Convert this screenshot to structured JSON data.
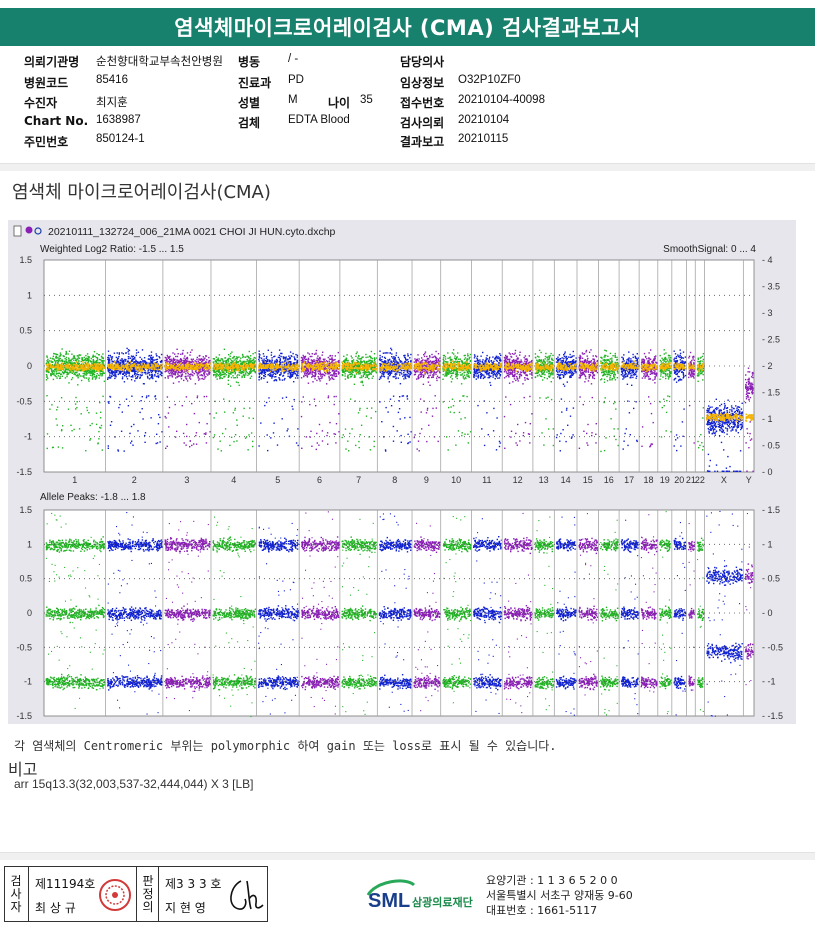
{
  "title": "염색체마이크로어레이검사 (CMA) 검사결과보고서",
  "info": {
    "rows": [
      [
        [
          "의뢰기관명",
          "순천향대학교부속천안병원"
        ],
        [
          "병동",
          "/ -"
        ],
        [
          "담당의사",
          ""
        ]
      ],
      [
        [
          "병원코드",
          "85416"
        ],
        [
          "진료과",
          "PD"
        ],
        [
          "임상정보",
          "O32P10ZF0"
        ]
      ],
      [
        [
          "수진자",
          "최지훈"
        ],
        [
          "성별",
          "M"
        ],
        [
          "접수번호",
          "20210104-40098"
        ]
      ],
      [
        [
          "Chart No.",
          "1638987"
        ],
        [
          "검체",
          "EDTA Blood"
        ],
        [
          "검사의뢰",
          "20210104"
        ]
      ],
      [
        [
          "주민번호",
          "850124-1"
        ],
        [
          "",
          ""
        ],
        [
          "결과보고",
          "20210115"
        ]
      ]
    ],
    "age_label": "나이",
    "age_value": "35"
  },
  "section_title": "염색체 마이크로어레이검사(CMA)",
  "plot": {
    "file_name": "20210111_132724_006_21MA 0021 CHOI JI HUN.cyto.dxchp",
    "top_title": "Weighted Log2 Ratio: -1.5 ... 1.5",
    "top_right_title": "SmoothSignal: 0 ... 4",
    "bottom_title": "Allele Peaks: -1.8 ... 1.8",
    "top_left_ticks": [
      "1.5",
      "1",
      "0.5",
      "0",
      "-0.5",
      "-1",
      "-1.5"
    ],
    "top_right_ticks": [
      "4",
      "3.5",
      "3",
      "2.5",
      "2",
      "1.5",
      "1",
      "0.5",
      "0"
    ],
    "bottom_ticks": [
      "1.5",
      "1",
      "0.5",
      "0",
      "-0.5",
      "-1",
      "-1.5"
    ],
    "chromosomes": [
      "1",
      "2",
      "3",
      "4",
      "5",
      "6",
      "7",
      "8",
      "9",
      "10",
      "11",
      "12",
      "13",
      "14",
      "15",
      "16",
      "17",
      "18",
      "19",
      "20",
      "21",
      "22",
      "X",
      "Y"
    ],
    "colors": {
      "green": "#22b324",
      "blue": "#1021d0",
      "purple": "#8a1fb5",
      "orange": "#f5b400",
      "bg": "#e6e6ec"
    }
  },
  "note": "각 염색체의 Centromeric 부위는 polymorphic 하여 gain 또는 loss로 표시 될 수 있습니다.",
  "remarks_title": "비고",
  "remarks_text": "arr 15q13.3(32,003,537-32,444,044) X 3 [LB]",
  "footer": {
    "sign_left_label": "검사자",
    "sign_left_no": "제11194호",
    "sign_left_name": "최 상 규",
    "sign_right_label": "판정의",
    "sign_right_no": "제3 3 3 호",
    "sign_right_name": "지 현 영",
    "logo_text": "SML",
    "logo_org": "삼광의료재단",
    "org_lines": [
      "요양기관 : 1 1 3 6 5 2 0 0",
      "서울특별시 서초구 양재동 9-60",
      "대표번호 : 1661-5117"
    ]
  }
}
